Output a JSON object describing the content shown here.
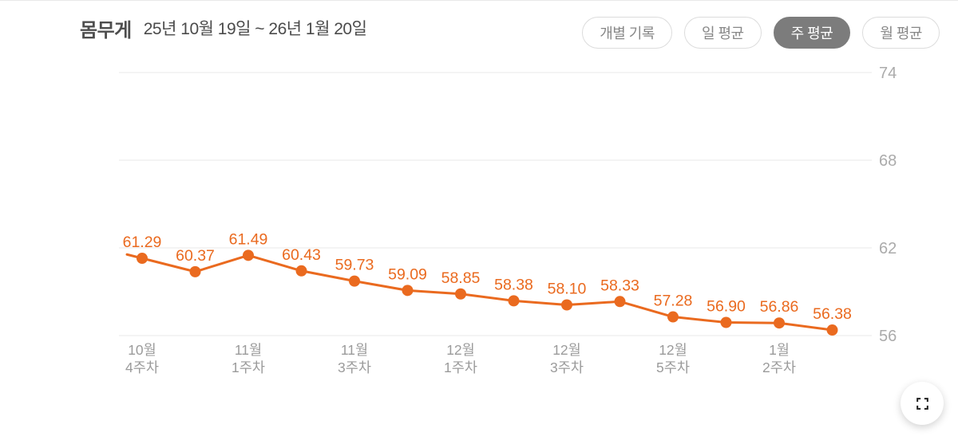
{
  "header": {
    "title": "몸무게",
    "date_range": "25년 10월 19일 ~ 26년 1월 20일",
    "filters": [
      {
        "label": "개별 기록",
        "selected": false
      },
      {
        "label": "일 평균",
        "selected": false
      },
      {
        "label": "주 평균",
        "selected": true
      },
      {
        "label": "월 평균",
        "selected": false
      }
    ]
  },
  "chart_data": {
    "type": "line",
    "title": "몸무게",
    "values": [
      61.29,
      60.37,
      61.49,
      60.43,
      59.73,
      59.09,
      58.85,
      58.38,
      58.1,
      58.33,
      57.28,
      56.9,
      56.86,
      56.38
    ],
    "point_labels": [
      "61.29",
      "60.37",
      "61.49",
      "60.43",
      "59.73",
      "59.09",
      "58.85",
      "58.38",
      "58.10",
      "58.33",
      "57.28",
      "56.90",
      "56.86",
      "56.38"
    ],
    "x_ticks": [
      {
        "index": 0,
        "lines": [
          "10월",
          "4주차"
        ]
      },
      {
        "index": 2,
        "lines": [
          "11월",
          "1주차"
        ]
      },
      {
        "index": 4,
        "lines": [
          "11월",
          "3주차"
        ]
      },
      {
        "index": 6,
        "lines": [
          "12월",
          "1주차"
        ]
      },
      {
        "index": 8,
        "lines": [
          "12월",
          "3주차"
        ]
      },
      {
        "index": 10,
        "lines": [
          "12월",
          "5주차"
        ]
      },
      {
        "index": 12,
        "lines": [
          "1월",
          "2주차"
        ]
      }
    ],
    "y_ticks": [
      74,
      68,
      62,
      56
    ],
    "ylim": [
      56,
      74
    ],
    "lead_in_value": 61.55,
    "grid": true,
    "legend": "none",
    "y_axis_position": "right",
    "line_color": "#EA6A1F",
    "point_color": "#EA6A1F",
    "value_label_color": "#EA6A1F",
    "x_axis_text_color": "#9b9b9b",
    "y_axis_text_color": "#ababab",
    "grid_color": "#f1f1f1"
  },
  "controls": {
    "fullscreen": "fullscreen-expand"
  }
}
